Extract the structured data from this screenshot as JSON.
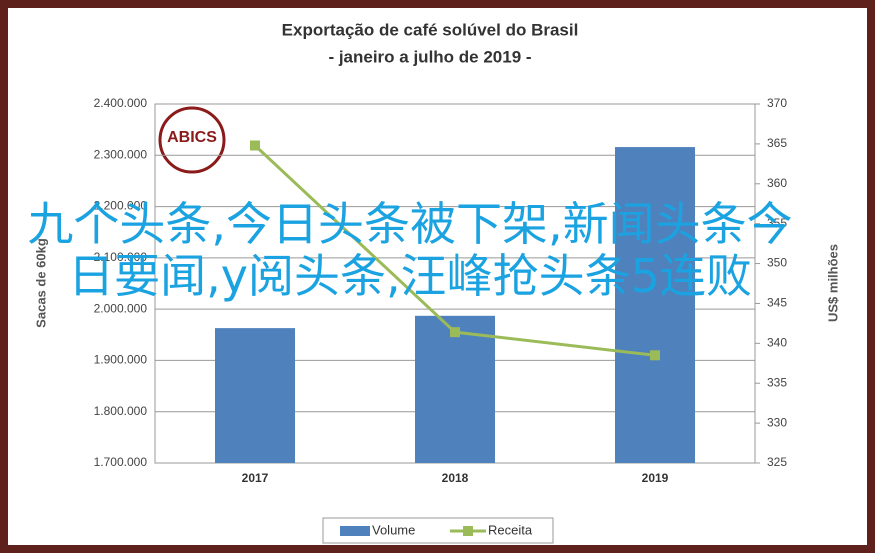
{
  "chart_data": {
    "type": "bar-line",
    "title": "Exportação de café solúvel do Brasil",
    "subtitle": "- janeiro a julho de 2019 -",
    "logo": "ABICS",
    "annotation": "九个头条,今日头条被下架,新闻头条今日要闻,y阅头条,汪峰抢头条5连败",
    "y_label": "Sacas de 60kg",
    "y2_label": "US$ milhões",
    "categories": [
      "2017",
      "2018",
      "2019"
    ],
    "series": [
      {
        "name": "Volume",
        "type": "bar",
        "color": "#4f81bd",
        "values": [
          1963000,
          1987000,
          2316000
        ]
      },
      {
        "name": "Receita",
        "type": "line",
        "color": "#9bbb59",
        "axis": "y2",
        "values": [
          364.8,
          341.4,
          338.5
        ]
      }
    ],
    "ylim": [
      1700000,
      2400000
    ],
    "yticks": [
      {
        "value": 1700000,
        "label": "1.700.000"
      },
      {
        "value": 1800000,
        "label": "1.800.000"
      },
      {
        "value": 1900000,
        "label": "1.900.000"
      },
      {
        "value": 2000000,
        "label": "2.000.000"
      },
      {
        "value": 2100000,
        "label": "2.100.000"
      },
      {
        "value": 2200000,
        "label": "2.200.000"
      },
      {
        "value": 2300000,
        "label": "2.300.000"
      },
      {
        "value": 2400000,
        "label": "2.400.000"
      }
    ],
    "y2lim": [
      325,
      370
    ],
    "y2ticks": [
      325,
      330,
      335,
      340,
      345,
      350,
      355,
      360,
      365,
      370
    ],
    "grid": true,
    "legend": "bottom"
  }
}
